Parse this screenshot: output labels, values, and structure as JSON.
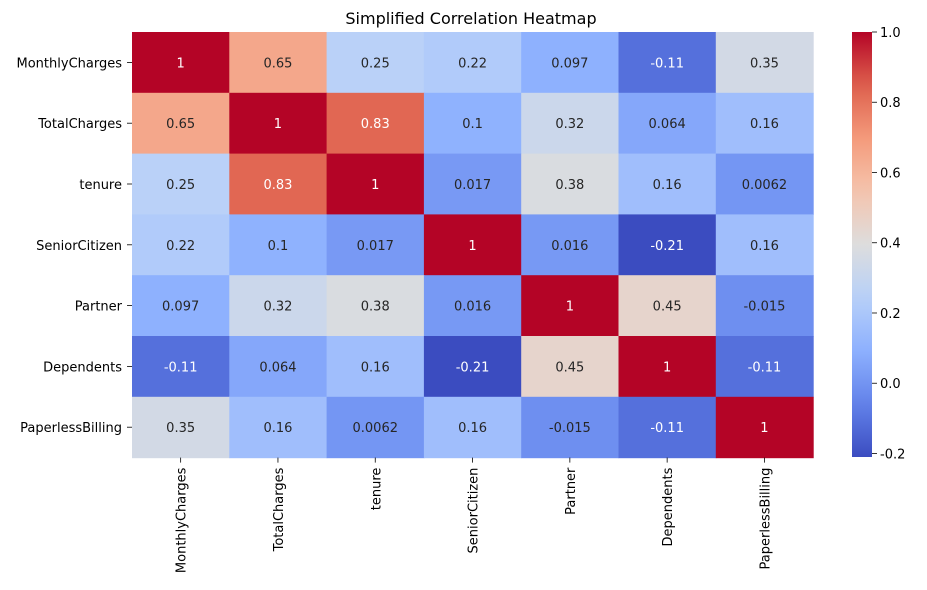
{
  "chart_data": {
    "type": "heatmap",
    "title": "Simplified Correlation Heatmap",
    "x_labels": [
      "MonthlyCharges",
      "TotalCharges",
      "tenure",
      "SeniorCitizen",
      "Partner",
      "Dependents",
      "PaperlessBilling"
    ],
    "y_labels": [
      "MonthlyCharges",
      "TotalCharges",
      "tenure",
      "SeniorCitizen",
      "Partner",
      "Dependents",
      "PaperlessBilling"
    ],
    "values": [
      [
        1,
        0.65,
        0.25,
        0.22,
        0.097,
        -0.11,
        0.35
      ],
      [
        0.65,
        1,
        0.83,
        0.1,
        0.32,
        0.064,
        0.16
      ],
      [
        0.25,
        0.83,
        1,
        0.017,
        0.38,
        0.16,
        0.0062
      ],
      [
        0.22,
        0.1,
        0.017,
        1,
        0.016,
        -0.21,
        0.16
      ],
      [
        0.097,
        0.32,
        0.38,
        0.016,
        1,
        0.45,
        -0.015
      ],
      [
        -0.11,
        0.064,
        0.16,
        -0.21,
        0.45,
        1,
        -0.11
      ],
      [
        0.35,
        0.16,
        0.0062,
        0.16,
        -0.015,
        -0.11,
        1
      ]
    ],
    "value_labels": [
      [
        "1",
        "0.65",
        "0.25",
        "0.22",
        "0.097",
        "-0.11",
        "0.35"
      ],
      [
        "0.65",
        "1",
        "0.83",
        "0.1",
        "0.32",
        "0.064",
        "0.16"
      ],
      [
        "0.25",
        "0.83",
        "1",
        "0.017",
        "0.38",
        "0.16",
        "0.0062"
      ],
      [
        "0.22",
        "0.1",
        "0.017",
        "1",
        "0.016",
        "-0.21",
        "0.16"
      ],
      [
        "0.097",
        "0.32",
        "0.38",
        "0.016",
        "1",
        "0.45",
        "-0.015"
      ],
      [
        "-0.11",
        "0.064",
        "0.16",
        "-0.21",
        "0.45",
        "1",
        "-0.11"
      ],
      [
        "0.35",
        "0.16",
        "0.0062",
        "0.16",
        "-0.015",
        "-0.11",
        "1"
      ]
    ],
    "colormap": "coolwarm",
    "color_range": [
      -0.21,
      1
    ],
    "colorbar_ticks": [
      "1.0",
      "0.8",
      "0.6",
      "0.4",
      "0.2",
      "0.0",
      "-0.2"
    ],
    "colorbar_tick_values": [
      1.0,
      0.8,
      0.6,
      0.4,
      0.2,
      0.0,
      -0.2
    ],
    "colorbar_position": "right",
    "grid": false
  }
}
